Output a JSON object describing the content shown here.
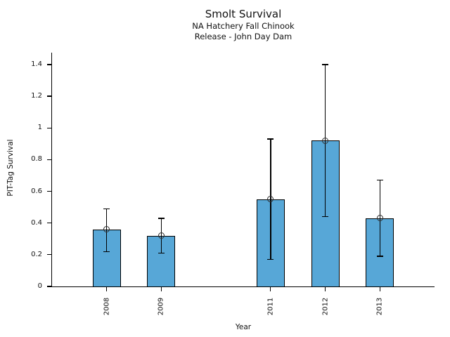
{
  "chart_data": {
    "type": "bar",
    "title": "Smolt Survival",
    "subtitle": [
      "NA Hatchery Fall Chinook",
      "Release - John Day Dam"
    ],
    "xlabel": "Year",
    "ylabel": "PIT-Tag Survival",
    "categories": [
      "2008",
      "2009",
      "2011",
      "2012",
      "2013"
    ],
    "values": [
      0.36,
      0.32,
      0.55,
      0.92,
      0.43
    ],
    "error_low": [
      0.22,
      0.21,
      0.17,
      0.44,
      0.19
    ],
    "error_high": [
      0.49,
      0.43,
      0.93,
      1.4,
      0.67
    ],
    "x_range": [
      2007,
      2014
    ],
    "ylim": [
      0,
      1.475
    ],
    "yticks": [
      "0",
      "0.2",
      "0.4",
      "0.6",
      "0.8",
      "1",
      "1.2",
      "1.4"
    ],
    "bar_width_years": 0.515,
    "grid": false,
    "legend": false,
    "marker": "open-circle",
    "colors": {
      "bar_fill": "#57A7D7",
      "bar_edge": "#000000",
      "error_bar": "#000000",
      "marker_edge": "#2e2e2e",
      "axis": "#000000",
      "text": "#111111"
    }
  }
}
